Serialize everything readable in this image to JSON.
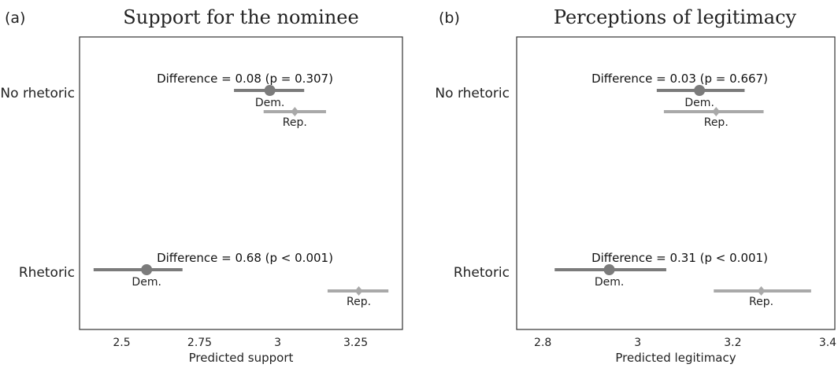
{
  "chart_data": [
    {
      "type": "scatter",
      "panel": "(a)",
      "title": "Support for the nominee",
      "xlabel": "Predicted support",
      "xlim": [
        2.365,
        3.4
      ],
      "xticks": [
        "2.5",
        "2.75",
        "3",
        "3.25"
      ],
      "xtick_values": [
        2.5,
        2.75,
        3.0,
        3.25
      ],
      "categories": [
        "No rhetoric",
        "Rhetoric"
      ],
      "groups": [
        {
          "category": "No rhetoric",
          "difference_label": "Difference  = 0.08 (p = 0.307)",
          "dem": {
            "label": "Dem.",
            "estimate": 2.975,
            "ci": [
              2.86,
              3.085
            ]
          },
          "rep": {
            "label": "Rep.",
            "estimate": 3.055,
            "ci": [
              2.955,
              3.155
            ]
          }
        },
        {
          "category": "Rhetoric",
          "difference_label": "Difference  = 0.68 (p < 0.001)",
          "dem": {
            "label": "Dem.",
            "estimate": 2.58,
            "ci": [
              2.41,
              2.695
            ]
          },
          "rep": {
            "label": "Rep.",
            "estimate": 3.26,
            "ci": [
              3.16,
              3.355
            ]
          }
        }
      ]
    },
    {
      "type": "scatter",
      "panel": "(b)",
      "title": "Perceptions of legitimacy",
      "xlabel": "Predicted legitimacy",
      "xlim": [
        2.745,
        3.415
      ],
      "xticks": [
        "2.8",
        "3",
        "3.2",
        "3.4"
      ],
      "xtick_values": [
        2.8,
        3.0,
        3.2,
        3.4
      ],
      "categories": [
        "No rhetoric",
        "Rhetoric"
      ],
      "groups": [
        {
          "category": "No rhetoric",
          "difference_label": "Difference  = 0.03 (p = 0.667)",
          "dem": {
            "label": "Dem.",
            "estimate": 3.13,
            "ci": [
              3.04,
              3.225
            ]
          },
          "rep": {
            "label": "Rep.",
            "estimate": 3.165,
            "ci": [
              3.055,
              3.265
            ]
          }
        },
        {
          "category": "Rhetoric",
          "difference_label": "Difference  = 0.31 (p < 0.001)",
          "dem": {
            "label": "Dem.",
            "estimate": 2.94,
            "ci": [
              2.825,
              3.06
            ]
          },
          "rep": {
            "label": "Rep.",
            "estimate": 3.26,
            "ci": [
              3.16,
              3.365
            ]
          }
        }
      ]
    }
  ],
  "colors": {
    "dem": "#7b7b7b",
    "rep": "#a9a9a9",
    "frame": "#333333"
  }
}
